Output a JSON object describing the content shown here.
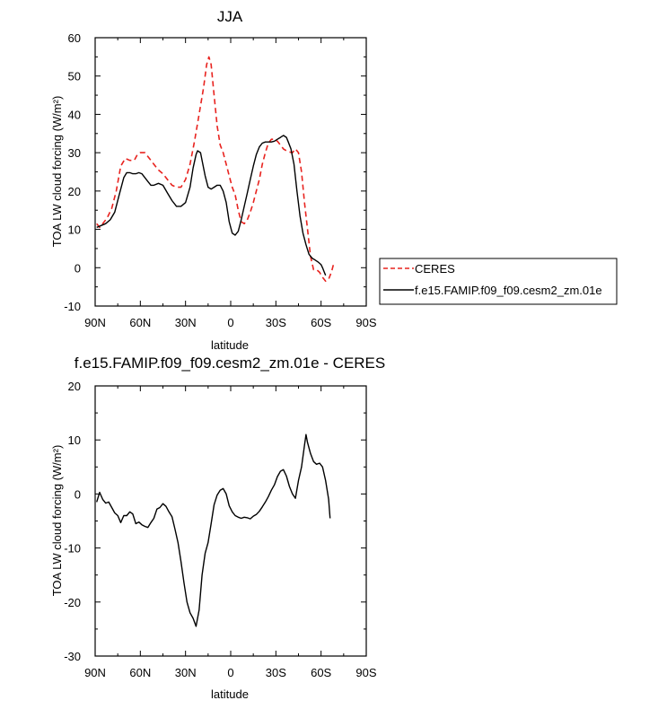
{
  "chart_data": [
    {
      "type": "line",
      "title": "JJA",
      "xlabel": "latitude",
      "ylabel": "TOA LW cloud forcing (W/m²)",
      "xlim": [
        90,
        -90
      ],
      "ylim": [
        -10,
        60
      ],
      "yticks": [
        60,
        50,
        40,
        30,
        20,
        10,
        0,
        -10
      ],
      "xtick_values": [
        90,
        60,
        30,
        0,
        -30,
        -60,
        -90
      ],
      "xtick_labels": [
        "90N",
        "60N",
        "30N",
        "0",
        "30S",
        "60S",
        "90S"
      ],
      "legend": {
        "position": "right",
        "entries": [
          "CERES",
          "f.e15.FAMIP.f09_f09.cesm2_zm.01e"
        ]
      },
      "series": [
        {
          "name": "CERES",
          "color": "#e8231f",
          "dash": "dashed",
          "points": [
            [
              89,
              11.5
            ],
            [
              87,
              10.5
            ],
            [
              85,
              11.5
            ],
            [
              82,
              13
            ],
            [
              79,
              15.5
            ],
            [
              76,
              20
            ],
            [
              73,
              26.5
            ],
            [
              70,
              28.5
            ],
            [
              67,
              28
            ],
            [
              64,
              28
            ],
            [
              62,
              29.5
            ],
            [
              60,
              30
            ],
            [
              57,
              30
            ],
            [
              54,
              28.5
            ],
            [
              51,
              27
            ],
            [
              48,
              25.5
            ],
            [
              45,
              24.5
            ],
            [
              42,
              23
            ],
            [
              39,
              21.5
            ],
            [
              36,
              21
            ],
            [
              33,
              21
            ],
            [
              30,
              23
            ],
            [
              27,
              27
            ],
            [
              24,
              33
            ],
            [
              21,
              40
            ],
            [
              18,
              47
            ],
            [
              16,
              53
            ],
            [
              14.5,
              55
            ],
            [
              13,
              53
            ],
            [
              11,
              45
            ],
            [
              9,
              37
            ],
            [
              7,
              32
            ],
            [
              5,
              30
            ],
            [
              3,
              27
            ],
            [
              1,
              24
            ],
            [
              -1,
              21
            ],
            [
              -3,
              19
            ],
            [
              -5,
              15
            ],
            [
              -7,
              12
            ],
            [
              -9,
              11.5
            ],
            [
              -11,
              12.5
            ],
            [
              -13,
              14.5
            ],
            [
              -15,
              17
            ],
            [
              -17,
              20
            ],
            [
              -19,
              23
            ],
            [
              -21,
              27
            ],
            [
              -23,
              30
            ],
            [
              -25,
              32.5
            ],
            [
              -27,
              33.5
            ],
            [
              -29,
              33.5
            ],
            [
              -31,
              33
            ],
            [
              -33,
              32
            ],
            [
              -35,
              31
            ],
            [
              -37,
              30.5
            ],
            [
              -39,
              30.2
            ],
            [
              -41,
              30
            ],
            [
              -43,
              31
            ],
            [
              -45,
              30
            ],
            [
              -47,
              25
            ],
            [
              -49,
              17
            ],
            [
              -51,
              10
            ],
            [
              -53,
              3
            ],
            [
              -55,
              -0.5
            ],
            [
              -57,
              -0.5
            ],
            [
              -59,
              -1.2
            ],
            [
              -61,
              -2.5
            ],
            [
              -63,
              -3.5
            ],
            [
              -65,
              -3
            ],
            [
              -67,
              -1
            ],
            [
              -68,
              0.5
            ],
            [
              -69,
              1.5
            ]
          ]
        },
        {
          "name": "f.e15.FAMIP.f09_f09.cesm2_zm.01e",
          "color": "#000000",
          "dash": "solid",
          "points": [
            [
              89,
              10.5
            ],
            [
              86,
              11
            ],
            [
              83,
              11.5
            ],
            [
              80,
              12.5
            ],
            [
              77,
              14.5
            ],
            [
              74,
              19
            ],
            [
              71,
              23.5
            ],
            [
              69,
              24.8
            ],
            [
              67,
              24.8
            ],
            [
              65,
              24.5
            ],
            [
              63,
              24.5
            ],
            [
              61,
              24.8
            ],
            [
              59,
              24.5
            ],
            [
              57,
              23.5
            ],
            [
              55,
              22.5
            ],
            [
              53,
              21.5
            ],
            [
              51,
              21.5
            ],
            [
              48,
              22
            ],
            [
              45,
              21.5
            ],
            [
              42,
              19.5
            ],
            [
              39,
              17.5
            ],
            [
              36,
              16
            ],
            [
              33,
              16
            ],
            [
              30,
              17
            ],
            [
              27,
              21
            ],
            [
              25,
              26
            ],
            [
              23,
              29.5
            ],
            [
              22,
              30.5
            ],
            [
              20,
              30
            ],
            [
              19,
              28
            ],
            [
              17,
              24
            ],
            [
              15,
              21
            ],
            [
              13,
              20.5
            ],
            [
              11,
              21
            ],
            [
              9,
              21.5
            ],
            [
              7,
              21.5
            ],
            [
              5,
              20
            ],
            [
              3,
              17
            ],
            [
              1,
              12
            ],
            [
              -1,
              9
            ],
            [
              -3,
              8.5
            ],
            [
              -5,
              9.5
            ],
            [
              -7,
              12.5
            ],
            [
              -9,
              16
            ],
            [
              -11,
              19.5
            ],
            [
              -13,
              23
            ],
            [
              -15,
              26.5
            ],
            [
              -17,
              29.5
            ],
            [
              -19,
              31.5
            ],
            [
              -21,
              32.5
            ],
            [
              -23,
              32.8
            ],
            [
              -25,
              32.8
            ],
            [
              -27,
              32.8
            ],
            [
              -29,
              33
            ],
            [
              -31,
              33.5
            ],
            [
              -33,
              34
            ],
            [
              -35,
              34.5
            ],
            [
              -37,
              34
            ],
            [
              -38,
              33
            ],
            [
              -40,
              31
            ],
            [
              -42,
              27
            ],
            [
              -44,
              20
            ],
            [
              -46,
              13.5
            ],
            [
              -48,
              9
            ],
            [
              -50,
              6
            ],
            [
              -52,
              3.5
            ],
            [
              -54,
              2.5
            ],
            [
              -56,
              2
            ],
            [
              -58,
              1.5
            ],
            [
              -60,
              0.8
            ],
            [
              -61,
              0
            ],
            [
              -62,
              -1
            ],
            [
              -63,
              -2
            ]
          ]
        }
      ]
    },
    {
      "type": "line",
      "title": "f.e15.FAMIP.f09_f09.cesm2_zm.01e - CERES",
      "xlabel": "latitude",
      "ylabel": "TOA LW cloud forcing (W/m²)",
      "xlim": [
        90,
        -90
      ],
      "ylim": [
        -30,
        20
      ],
      "yticks": [
        20,
        10,
        0,
        -10,
        -20,
        -30
      ],
      "xtick_values": [
        90,
        60,
        30,
        0,
        -30,
        -60,
        -90
      ],
      "xtick_labels": [
        "90N",
        "60N",
        "30N",
        "0",
        "30S",
        "60S",
        "90S"
      ],
      "series": [
        {
          "name": "f.e15.FAMIP.f09_f09.cesm2_zm.01e - CERES",
          "color": "#000000",
          "dash": "solid",
          "points": [
            [
              89,
              -1.5
            ],
            [
              87,
              0.3
            ],
            [
              85,
              -1
            ],
            [
              83,
              -1.7
            ],
            [
              81,
              -1.5
            ],
            [
              79,
              -2.5
            ],
            [
              77,
              -3.5
            ],
            [
              75,
              -4
            ],
            [
              73,
              -5.3
            ],
            [
              71,
              -4
            ],
            [
              69,
              -4
            ],
            [
              67,
              -3.3
            ],
            [
              65,
              -3.7
            ],
            [
              63,
              -5.5
            ],
            [
              61,
              -5.2
            ],
            [
              59,
              -5.7
            ],
            [
              57,
              -6
            ],
            [
              55,
              -6.2
            ],
            [
              53,
              -5.3
            ],
            [
              51,
              -4.5
            ],
            [
              49,
              -2.8
            ],
            [
              47,
              -2.5
            ],
            [
              45,
              -1.8
            ],
            [
              43,
              -2.3
            ],
            [
              41,
              -3.3
            ],
            [
              39,
              -4.2
            ],
            [
              37,
              -6.5
            ],
            [
              35,
              -9
            ],
            [
              33,
              -12.5
            ],
            [
              31,
              -16.5
            ],
            [
              29,
              -20
            ],
            [
              27,
              -22
            ],
            [
              25,
              -23
            ],
            [
              23,
              -24.5
            ],
            [
              21,
              -21.5
            ],
            [
              19,
              -15
            ],
            [
              17,
              -11
            ],
            [
              15,
              -9
            ],
            [
              13,
              -5.5
            ],
            [
              11,
              -2
            ],
            [
              9,
              -0.2
            ],
            [
              7,
              0.7
            ],
            [
              5,
              1
            ],
            [
              3,
              0
            ],
            [
              1,
              -2.2
            ],
            [
              -1,
              -3.3
            ],
            [
              -3,
              -4
            ],
            [
              -5,
              -4.3
            ],
            [
              -7,
              -4.5
            ],
            [
              -9,
              -4.3
            ],
            [
              -11,
              -4.4
            ],
            [
              -13,
              -4.6
            ],
            [
              -15,
              -4.1
            ],
            [
              -17,
              -3.8
            ],
            [
              -19,
              -3.2
            ],
            [
              -21,
              -2.4
            ],
            [
              -23,
              -1.5
            ],
            [
              -25,
              -0.5
            ],
            [
              -27,
              0.7
            ],
            [
              -29,
              1.7
            ],
            [
              -31,
              3.2
            ],
            [
              -33,
              4.2
            ],
            [
              -35,
              4.5
            ],
            [
              -37,
              3.3
            ],
            [
              -39,
              1.4
            ],
            [
              -41,
              0
            ],
            [
              -43,
              -0.8
            ],
            [
              -45,
              2.5
            ],
            [
              -47,
              5
            ],
            [
              -49,
              9
            ],
            [
              -50,
              11
            ],
            [
              -51,
              9.5
            ],
            [
              -53,
              7.5
            ],
            [
              -55,
              6
            ],
            [
              -57,
              5.5
            ],
            [
              -59,
              5.7
            ],
            [
              -61,
              5
            ],
            [
              -63,
              2.5
            ],
            [
              -65,
              -1
            ],
            [
              -66,
              -4.5
            ]
          ]
        }
      ]
    }
  ]
}
